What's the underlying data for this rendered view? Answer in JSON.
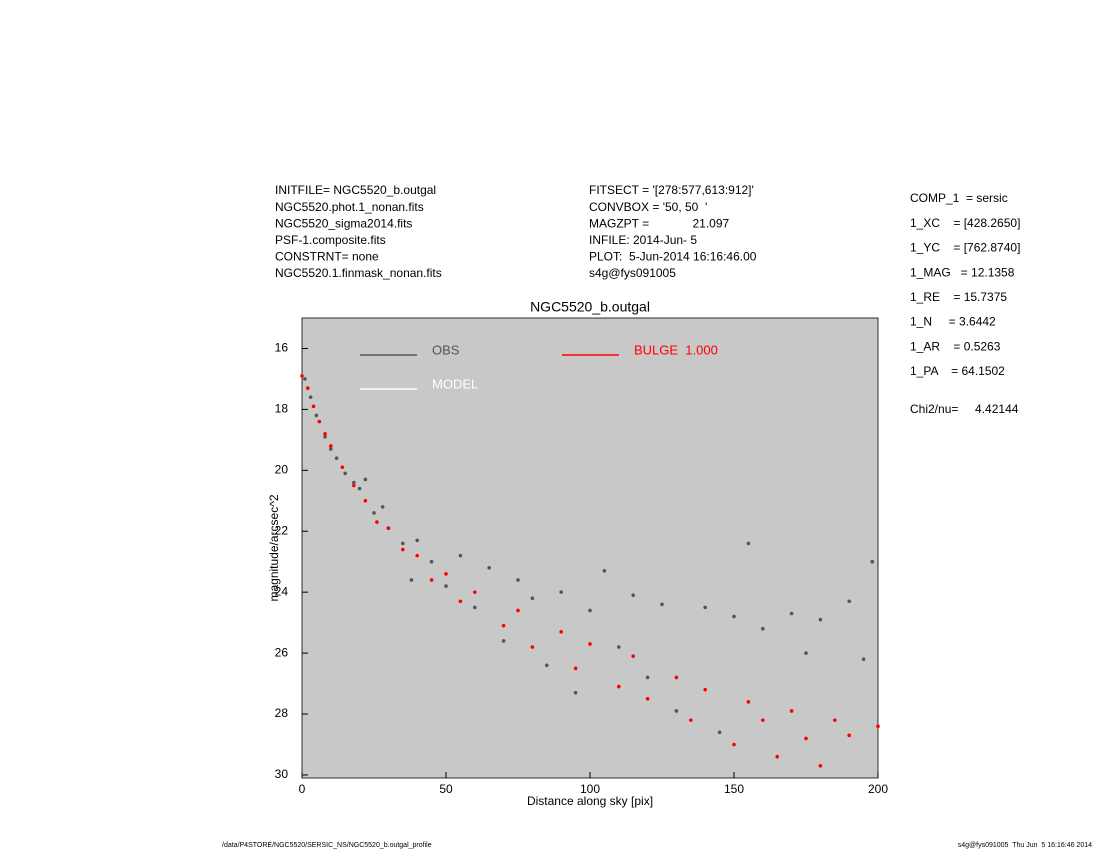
{
  "header": {
    "left": [
      "INITFILE= NGC5520_b.outgal",
      "NGC5520.phot.1_nonan.fits",
      "NGC5520_sigma2014.fits",
      "PSF-1.composite.fits",
      "CONSTRNT= none",
      "NGC5520.1.finmask_nonan.fits"
    ],
    "middle": [
      "FITSECT = '[278:577,613:912]'",
      "CONVBOX = '50, 50  '",
      "MAGZPT =             21.097",
      "INFILE: 2014-Jun- 5",
      "PLOT:  5-Jun-2014 16:16:46.00",
      "s4g@fys091005"
    ],
    "right": [
      "COMP_1  = sersic",
      "1_XC    = [428.2650]",
      "1_YC    = [762.8740]",
      "1_MAG   = 12.1358",
      "1_RE    = 15.7375",
      "1_N     = 3.6442",
      "1_AR    = 0.5263",
      "1_PA    = 64.1502"
    ],
    "chi2": "Chi2/nu=     4.42144"
  },
  "footer": {
    "left": "/data/P4STORE/NGC5520/SERSIC_NS/NGC5520_b.outgal_profile",
    "right": "s4g@fys091005  Thu Jun  5 16:16:46 2014"
  },
  "chart_data": {
    "type": "scatter",
    "title": "NGC5520_b.outgal",
    "xlabel": "Distance along sky [pix]",
    "ylabel": "magnitude/arcsec^2",
    "xlim": [
      0,
      200
    ],
    "ylim": [
      30.1,
      15
    ],
    "xticks": [
      0,
      50,
      100,
      150,
      200
    ],
    "yticks": [
      16,
      18,
      20,
      22,
      24,
      26,
      28,
      30
    ],
    "background": "#c8c8c8",
    "series": [
      {
        "name": "OBS",
        "color": "#555555",
        "x": [
          1,
          3,
          5,
          8,
          10,
          12,
          15,
          18,
          20,
          22,
          25,
          28,
          30,
          35,
          38,
          40,
          45,
          50,
          55,
          60,
          65,
          70,
          75,
          80,
          85,
          90,
          95,
          100,
          105,
          110,
          115,
          120,
          125,
          130,
          140,
          145,
          150,
          155,
          160,
          170,
          175,
          180,
          190,
          195,
          198
        ],
        "values": [
          17.0,
          17.6,
          18.2,
          18.9,
          19.3,
          19.6,
          20.1,
          20.4,
          20.6,
          20.3,
          21.4,
          21.2,
          21.9,
          22.4,
          23.6,
          22.3,
          23.0,
          23.8,
          22.8,
          24.5,
          23.2,
          25.6,
          23.6,
          24.2,
          26.4,
          24.0,
          27.3,
          24.6,
          23.3,
          25.8,
          24.1,
          26.8,
          24.4,
          27.9,
          24.5,
          28.6,
          24.8,
          22.4,
          25.2,
          24.7,
          26.0,
          24.9,
          24.3,
          26.2,
          23.0
        ]
      },
      {
        "name": "MODEL",
        "color": "#ffffff",
        "x": [],
        "values": []
      },
      {
        "name": "BULGE  1.000",
        "color": "#ff0000",
        "x": [
          0,
          2,
          4,
          6,
          8,
          10,
          14,
          18,
          22,
          26,
          30,
          35,
          40,
          45,
          50,
          55,
          60,
          70,
          75,
          80,
          90,
          95,
          100,
          110,
          115,
          120,
          130,
          135,
          140,
          150,
          155,
          160,
          165,
          170,
          175,
          180,
          185,
          190,
          200
        ],
        "values": [
          16.9,
          17.3,
          17.9,
          18.4,
          18.8,
          19.2,
          19.9,
          20.5,
          21.0,
          21.7,
          21.9,
          22.6,
          22.8,
          23.6,
          23.4,
          24.3,
          24.0,
          25.1,
          24.6,
          25.8,
          25.3,
          26.5,
          25.7,
          27.1,
          26.1,
          27.5,
          26.8,
          28.2,
          27.2,
          29.0,
          27.6,
          28.2,
          29.4,
          27.9,
          28.8,
          29.7,
          28.2,
          28.7,
          28.4
        ]
      }
    ]
  }
}
